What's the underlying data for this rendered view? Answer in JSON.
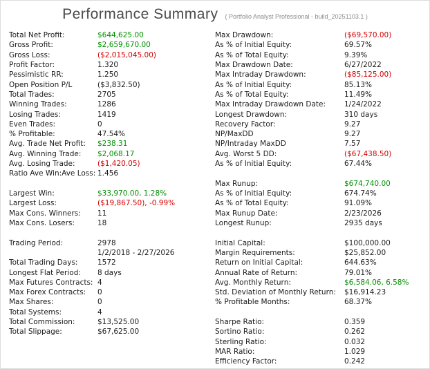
{
  "header": {
    "title": "Performance Summary",
    "subtitle": "( Portfolio Analyst Professional - build_20251103.1 )"
  },
  "colors": {
    "positive": "#008f00",
    "negative": "#d40000",
    "neutral": "#1a1a1a"
  },
  "left_column": {
    "rows": [
      {
        "label": "Total Net Profit:",
        "value": "$644,625.00",
        "tone": "positive"
      },
      {
        "label": "Gross Profit:",
        "value": "$2,659,670.00",
        "tone": "positive"
      },
      {
        "label": "Gross Loss:",
        "value": "($2,015,045.00)",
        "tone": "negative"
      },
      {
        "label": "Profit Factor:",
        "value": "1.320",
        "tone": "neutral"
      },
      {
        "label": "Pessimistic RR:",
        "value": "1.250",
        "tone": "neutral"
      },
      {
        "label": "Open Position P/L",
        "value": "($3,832.50)",
        "tone": "neutral"
      },
      {
        "label": "Total Trades:",
        "value": "2705",
        "tone": "neutral"
      },
      {
        "label": "Winning Trades:",
        "value": "1286",
        "tone": "neutral"
      },
      {
        "label": "Losing Trades:",
        "value": "1419",
        "tone": "neutral"
      },
      {
        "label": "Even Trades:",
        "value": "0",
        "tone": "neutral"
      },
      {
        "label": "% Profitable:",
        "value": "47.54%",
        "tone": "neutral"
      },
      {
        "label": "Avg. Trade Net Profit:",
        "value": "$238.31",
        "tone": "positive"
      },
      {
        "label": "Avg. Winning Trade:",
        "value": "$2,068.17",
        "tone": "positive"
      },
      {
        "label": "Avg. Losing Trade:",
        "value": "($1,420.05)",
        "tone": "negative"
      },
      {
        "label": "Ratio Ave Win:Ave Loss:",
        "value": "1.456",
        "tone": "neutral"
      },
      {
        "label": "",
        "value": "",
        "tone": "neutral"
      },
      {
        "label": "Largest Win:",
        "value": "$33,970.00, 1.28%",
        "tone": "positive"
      },
      {
        "label": "Largest Loss:",
        "value": "($19,867.50), -0.99%",
        "tone": "negative"
      },
      {
        "label": "Max Cons. Winners:",
        "value": "11",
        "tone": "neutral"
      },
      {
        "label": "Max Cons. Losers:",
        "value": "18",
        "tone": "neutral"
      },
      {
        "label": "",
        "value": "",
        "tone": "neutral"
      },
      {
        "label": "Trading Period:",
        "value": "2978",
        "tone": "neutral"
      },
      {
        "label": "",
        "value": "1/2/2018 - 2/27/2026",
        "tone": "neutral"
      },
      {
        "label": "Total Trading Days:",
        "value": "1572",
        "tone": "neutral"
      },
      {
        "label": "Longest Flat Period:",
        "value": "8 days",
        "tone": "neutral"
      },
      {
        "label": "Max Futures Contracts:",
        "value": "4",
        "tone": "neutral"
      },
      {
        "label": "Max Forex Contracts:",
        "value": "0",
        "tone": "neutral"
      },
      {
        "label": "Max Shares:",
        "value": "0",
        "tone": "neutral"
      },
      {
        "label": "Total Systems:",
        "value": "4",
        "tone": "neutral"
      },
      {
        "label": "Total Commission:",
        "value": "$13,525.00",
        "tone": "neutral"
      },
      {
        "label": "Total Slippage:",
        "value": "$67,625.00",
        "tone": "neutral"
      }
    ]
  },
  "right_column": {
    "rows": [
      {
        "label": "Max Drawdown:",
        "value": "($69,570.00)",
        "tone": "negative"
      },
      {
        "label": "As % of Initial Equity:",
        "value": "69.57%",
        "tone": "neutral"
      },
      {
        "label": "As % of Total Equity:",
        "value": "9.39%",
        "tone": "neutral"
      },
      {
        "label": "Max Drawdown Date:",
        "value": "6/27/2022",
        "tone": "neutral"
      },
      {
        "label": "Max Intraday Drawdown:",
        "value": "($85,125.00)",
        "tone": "negative"
      },
      {
        "label": "As % of Initial Equity:",
        "value": "85.13%",
        "tone": "neutral"
      },
      {
        "label": "As % of Total Equity:",
        "value": "11.49%",
        "tone": "neutral"
      },
      {
        "label": "Max Intraday Drawdown Date:",
        "value": "1/24/2022",
        "tone": "neutral"
      },
      {
        "label": "Longest Drawdown:",
        "value": "310 days",
        "tone": "neutral"
      },
      {
        "label": "Recovery Factor:",
        "value": "9.27",
        "tone": "neutral"
      },
      {
        "label": "NP/MaxDD",
        "value": "9.27",
        "tone": "neutral"
      },
      {
        "label": "NP/Intraday MaxDD",
        "value": "7.57",
        "tone": "neutral"
      },
      {
        "label": "Avg. Worst 5 DD:",
        "value": "($67,438.50)",
        "tone": "negative"
      },
      {
        "label": "As % of Initial Equity:",
        "value": "67.44%",
        "tone": "neutral"
      },
      {
        "label": "",
        "value": "",
        "tone": "neutral"
      },
      {
        "label": "Max Runup:",
        "value": "$674,740.00",
        "tone": "positive"
      },
      {
        "label": "As % of Initial Equity:",
        "value": "674.74%",
        "tone": "neutral"
      },
      {
        "label": "As % of Total Equity:",
        "value": "91.09%",
        "tone": "neutral"
      },
      {
        "label": "Max Runup Date:",
        "value": "2/23/2026",
        "tone": "neutral"
      },
      {
        "label": "Longest Runup:",
        "value": "2935 days",
        "tone": "neutral"
      },
      {
        "label": "",
        "value": "",
        "tone": "neutral"
      },
      {
        "label": "Initial Capital:",
        "value": "$100,000.00",
        "tone": "neutral"
      },
      {
        "label": "Margin Requirements:",
        "value": "$25,852.00",
        "tone": "neutral"
      },
      {
        "label": "Return on Initial Capital:",
        "value": "644.63%",
        "tone": "neutral"
      },
      {
        "label": "Annual Rate of Return:",
        "value": "79.01%",
        "tone": "neutral"
      },
      {
        "label": "Avg. Monthly Return:",
        "value": "$6,584.06, 6.58%",
        "tone": "positive"
      },
      {
        "label": "Std. Deviation of Monthly Return:",
        "value": "$16,914.23",
        "tone": "neutral"
      },
      {
        "label": "% Profitable Months:",
        "value": "68.37%",
        "tone": "neutral"
      },
      {
        "label": "",
        "value": "",
        "tone": "neutral"
      },
      {
        "label": "Sharpe Ratio:",
        "value": "0.359",
        "tone": "neutral"
      },
      {
        "label": "Sortino Ratio:",
        "value": "0.262",
        "tone": "neutral"
      },
      {
        "label": "Sterling Ratio:",
        "value": "0.032",
        "tone": "neutral"
      },
      {
        "label": "MAR Ratio:",
        "value": "1.029",
        "tone": "neutral"
      },
      {
        "label": "Efficiency Factor:",
        "value": "0.242",
        "tone": "neutral"
      }
    ]
  }
}
